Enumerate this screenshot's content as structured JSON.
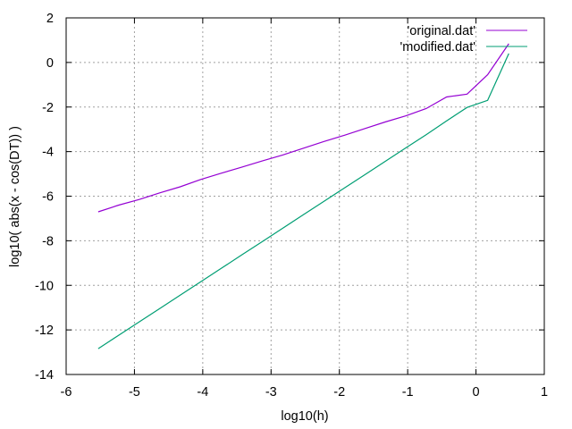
{
  "chart_data": {
    "type": "line",
    "title": "",
    "xlabel": "log10(h)",
    "ylabel": "log10( abs(x - cos(DT)) )",
    "xlim": [
      -6,
      1
    ],
    "ylim": [
      -14,
      2
    ],
    "xticks": [
      -6,
      -5,
      -4,
      -3,
      -2,
      -1,
      0,
      1
    ],
    "yticks": [
      -14,
      -12,
      -10,
      -8,
      -6,
      -4,
      -2,
      0,
      2
    ],
    "grid": true,
    "legend_position": "top-right",
    "series": [
      {
        "name": "'original.dat'",
        "color": "#9400d3",
        "x": [
          -5.53,
          -5.23,
          -4.93,
          -4.63,
          -4.33,
          -4.03,
          -3.73,
          -3.43,
          -3.13,
          -2.83,
          -2.53,
          -2.23,
          -1.93,
          -1.63,
          -1.33,
          -1.03,
          -0.73,
          -0.43,
          -0.13,
          0.17,
          0.48
        ],
        "y": [
          -6.7,
          -6.4,
          -6.15,
          -5.85,
          -5.58,
          -5.25,
          -4.97,
          -4.7,
          -4.42,
          -4.15,
          -3.85,
          -3.55,
          -3.27,
          -2.97,
          -2.67,
          -2.4,
          -2.07,
          -1.55,
          -1.42,
          -0.55,
          0.84
        ]
      },
      {
        "name": "'modified.dat'",
        "color": "#009e73",
        "x": [
          -5.53,
          -5.23,
          -4.93,
          -4.63,
          -4.33,
          -4.03,
          -3.73,
          -3.43,
          -3.13,
          -2.83,
          -2.53,
          -2.23,
          -1.93,
          -1.63,
          -1.33,
          -1.03,
          -0.73,
          -0.43,
          -0.13,
          0.17,
          0.48
        ],
        "y": [
          -12.84,
          -12.24,
          -11.64,
          -11.04,
          -10.44,
          -9.84,
          -9.24,
          -8.64,
          -8.04,
          -7.44,
          -6.84,
          -6.24,
          -5.64,
          -5.04,
          -4.44,
          -3.84,
          -3.24,
          -2.62,
          -2.02,
          -1.7,
          0.4
        ]
      }
    ]
  },
  "legend": {
    "items": [
      {
        "label": "'original.dat'",
        "color": "#9400d3"
      },
      {
        "label": "'modified.dat'",
        "color": "#009e73"
      }
    ]
  },
  "axes": {
    "xlabel": "log10(h)",
    "ylabel": "log10( abs(x - cos(DT)) )",
    "x_tick_labels": [
      "-6",
      "-5",
      "-4",
      "-3",
      "-2",
      "-1",
      "0",
      "1"
    ],
    "y_tick_labels": [
      "-14",
      "-12",
      "-10",
      "-8",
      "-6",
      "-4",
      "-2",
      "0",
      "2"
    ]
  }
}
